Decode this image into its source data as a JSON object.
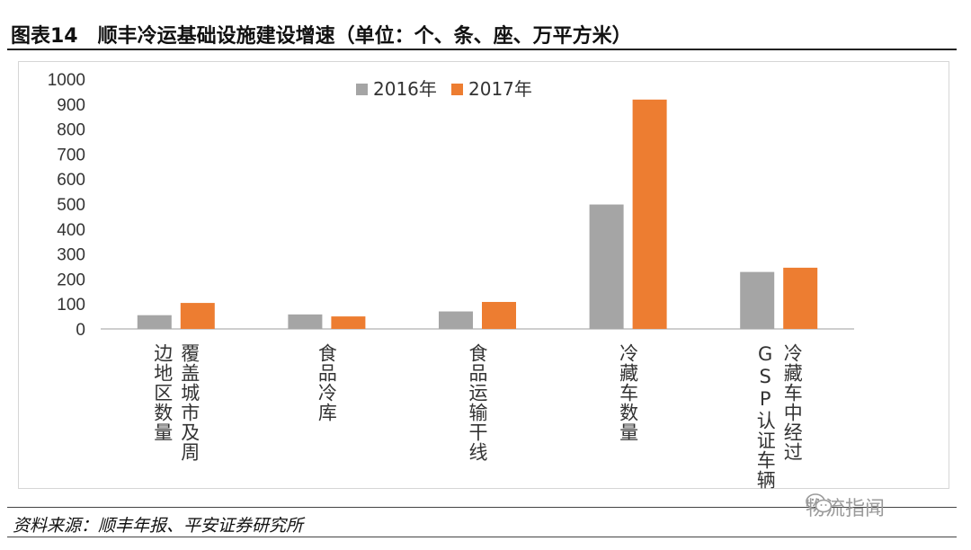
{
  "header": {
    "figure_number": "图表14",
    "title": "顺丰冷运基础设施建设增速（单位：个、条、座、万平方米）"
  },
  "footer": {
    "source": "资料来源：顺丰年报、平安证券研究所"
  },
  "watermark": {
    "text": "物流指闻",
    "icon": "wechat-icon"
  },
  "chart_data": {
    "type": "bar",
    "title": "",
    "xlabel": "",
    "ylabel": "",
    "ylim": [
      0,
      1000
    ],
    "yticks": [
      "0",
      "100",
      "200",
      "300",
      "400",
      "500",
      "600",
      "700",
      "800",
      "900",
      "1000"
    ],
    "grid": false,
    "legend": "top-center",
    "categories": [
      "覆盖城市及周边地区数量",
      "食品冷库",
      "食品运输干线",
      "冷藏车数量",
      "冷藏车中经过GSP认证车辆"
    ],
    "category_lines": [
      [
        "覆盖城市及周",
        "边地区数量"
      ],
      [
        "食品冷库"
      ],
      [
        "食品运输干线"
      ],
      [
        "冷藏车数量"
      ],
      [
        "冷藏车中经过",
        "GSP认证车辆"
      ]
    ],
    "series": [
      {
        "name": "2016年",
        "color": "#a5a5a5",
        "values": [
          55,
          58,
          70,
          498,
          228
        ]
      },
      {
        "name": "2017年",
        "color": "#ed7d31",
        "values": [
          104,
          50,
          108,
          918,
          245
        ]
      }
    ]
  }
}
